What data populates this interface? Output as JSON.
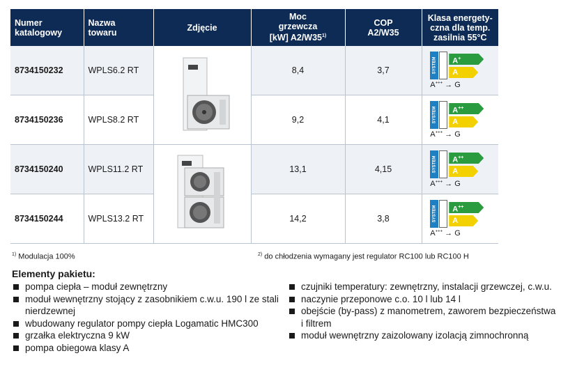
{
  "table": {
    "headers": {
      "num": [
        "Numer",
        "katalogowy"
      ],
      "name": [
        "Nazwa",
        "towaru"
      ],
      "photo": "Zdjęcie",
      "power": [
        "Moc",
        "grzewcza",
        "[kW] A2/W35"
      ],
      "power_note": "1)",
      "cop": [
        "COP",
        "A2/W35"
      ],
      "energy": [
        "Klasa energety-",
        "czna dla temp.",
        "zasilnia 55°C"
      ]
    },
    "rows": [
      {
        "num": "8734150232",
        "name": "WPLS6.2 RT",
        "power": "8,4",
        "cop": "3,7",
        "class_main": "A",
        "class_main_sup": "+",
        "class_sec": "A"
      },
      {
        "num": "8734150236",
        "name": "WPLS8.2 RT",
        "power": "9,2",
        "cop": "4,1",
        "class_main": "A",
        "class_main_sup": "++",
        "class_sec": "A"
      },
      {
        "num": "8734150240",
        "name": "WPLS11.2 RT",
        "power": "13,1",
        "cop": "4,15",
        "class_main": "A",
        "class_main_sup": "++",
        "class_sec": "A"
      },
      {
        "num": "8734150244",
        "name": "WPLS13.2 RT",
        "power": "14,2",
        "cop": "3,8",
        "class_main": "A",
        "class_main_sup": "++",
        "class_sec": "A"
      }
    ],
    "label_system": "SYSTEM",
    "scale_from": "A",
    "scale_from_sup": "+++",
    "scale_arrow": "→",
    "scale_to": "G"
  },
  "footnotes": {
    "note1_mark": "1)",
    "note1": "Modulacja 100%",
    "note2_mark": "2)",
    "note2": "do chłodzenia wymagany jest regulator RC100 lub RC100 H"
  },
  "package": {
    "title": "Elementy pakietu:",
    "left": [
      "pompa ciepła – moduł zewnętrzny",
      "moduł wewnętrzny stojący z zasobnikiem c.w.u. 190 l ze stali nierdzewnej",
      "wbudowany regulator pompy ciepła Logamatic HMC300",
      "grzałka elektryczna 9 kW",
      "pompa obiegowa klasy A"
    ],
    "right": [
      "czujniki temperatury: zewnętrzny, instalacji grzewczej, c.w.u.",
      "naczynie przeponowe c.o. 10 l lub 14 l",
      "obejście (by-pass) z manometrem, zaworem bezpieczeństwa i filtrem",
      "moduł wewnętrzny zaizolowany izolacją zimnochronną"
    ]
  },
  "colors": {
    "header_bg": "#0d2b54",
    "class_green": "#2a9b3e",
    "class_yellow": "#f3d000",
    "system_blue": "#1e7fc2"
  }
}
